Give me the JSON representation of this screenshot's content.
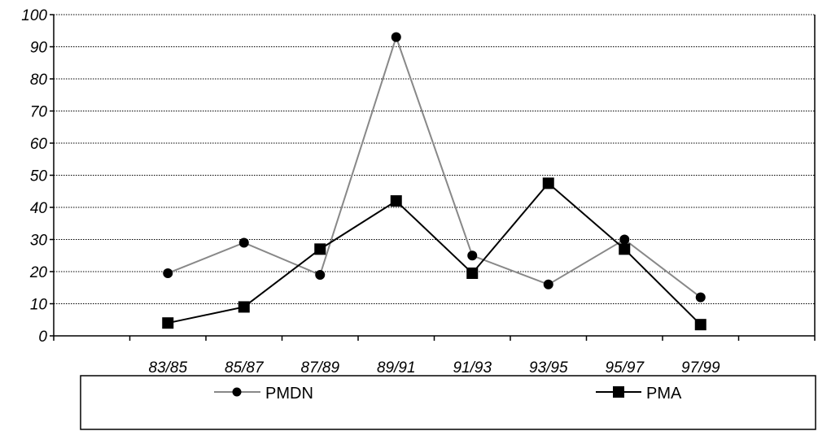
{
  "chart_data": {
    "type": "line",
    "title": "",
    "xlabel": "",
    "ylabel": "",
    "categories": [
      "83/85",
      "85/87",
      "87/89",
      "89/91",
      "91/93",
      "93/95",
      "95/97",
      "97/99"
    ],
    "ylim": [
      0,
      100
    ],
    "yticks": [
      0,
      10,
      20,
      30,
      40,
      50,
      60,
      70,
      80,
      90,
      100
    ],
    "y_tick_labels": [
      "0",
      "10",
      "20",
      "30",
      "40",
      "50",
      "60",
      "70",
      "80",
      "90",
      "100"
    ],
    "grid": "horizontal dotted",
    "legend_position": "bottom",
    "series": [
      {
        "name": "PMDN",
        "marker": "circle",
        "color": "#888888",
        "values": [
          19.5,
          29,
          19,
          93,
          25,
          16,
          30,
          12
        ]
      },
      {
        "name": "PMA",
        "marker": "square",
        "color": "#000000",
        "values": [
          4,
          9,
          27,
          42,
          19.5,
          47.5,
          27,
          3.5
        ]
      }
    ]
  }
}
